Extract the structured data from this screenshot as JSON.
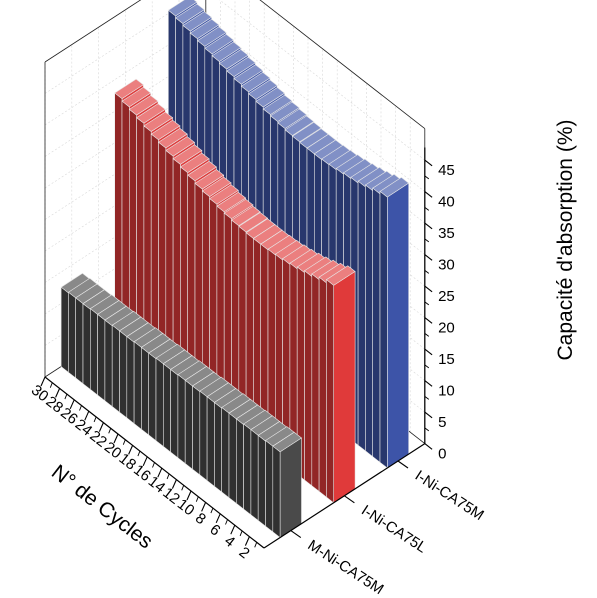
{
  "chart_data": {
    "type": "bar",
    "subtype": "3d-walls",
    "xlabel": "N° de Cycles",
    "ylabel": "Capacité d'absorption (%)",
    "yticks": [
      0,
      5,
      10,
      15,
      20,
      25,
      30,
      35,
      40,
      45
    ],
    "ylim": [
      0,
      48
    ],
    "cycle_ticks": [
      2,
      4,
      6,
      8,
      10,
      12,
      14,
      16,
      18,
      20,
      22,
      24,
      26,
      28,
      30
    ],
    "grid": true,
    "series": [
      {
        "name": "M-Ni-CA75M",
        "color": "#4a4a4a",
        "values": [
          13.6,
          13.6,
          13.5,
          13.5,
          13.5,
          13.4,
          13.4,
          13.4,
          13.3,
          13.3,
          13.3,
          13.2,
          13.2,
          13.2,
          13.1,
          13.1,
          13.1,
          13.0,
          13.0,
          13.0,
          12.9,
          12.9,
          12.9,
          12.8,
          12.8,
          12.8,
          12.7,
          12.7,
          12.7,
          12.6
        ]
      },
      {
        "name": "I-Ni-CA75L",
        "color": "#e03a3a",
        "values": [
          34.5,
          34.0,
          33.6,
          33.2,
          32.9,
          32.6,
          32.4,
          32.2,
          32.1,
          32.0,
          32.0,
          32.0,
          32.1,
          32.2,
          32.4,
          32.6,
          32.9,
          33.2,
          33.5,
          33.9,
          34.3,
          34.7,
          35.1,
          35.5,
          35.9,
          36.3,
          36.7,
          37.1,
          37.5,
          37.9
        ]
      },
      {
        "name": "I-Ni-CA75M",
        "color": "#3d54a8",
        "values": [
          43.0,
          42.6,
          42.2,
          41.9,
          41.6,
          41.4,
          41.2,
          41.0,
          40.9,
          40.8,
          40.8,
          40.8,
          40.9,
          41.0,
          41.2,
          41.4,
          41.6,
          41.9,
          42.2,
          42.5,
          42.8,
          43.1,
          43.4,
          43.7,
          44.0,
          44.3,
          44.6,
          44.9,
          45.2,
          45.5
        ]
      }
    ]
  }
}
